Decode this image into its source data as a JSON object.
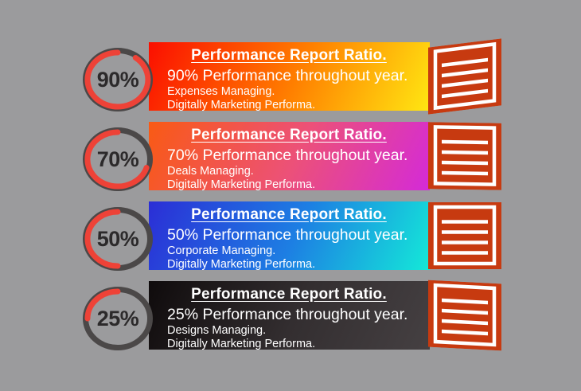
{
  "colors": {
    "bg": "#9b9b9d",
    "ring_gray": "#4b4848",
    "arc_red": "#ee4237",
    "icon_red": "#c73a10",
    "percent_text": "#2c2a2b",
    "banner_text": "#ffffff"
  },
  "rows": [
    {
      "percent": 90,
      "percent_label": "90%",
      "title": "Performance Report Ratio.",
      "subtitle": "90% Performance throughout year.",
      "detail1": "Expenses Managing.",
      "detail2": "Digitally Marketing Performa.",
      "gradient": [
        "#fb0f00",
        "#ff7e00",
        "#ffe712"
      ],
      "icon_tilt_deg": -7
    },
    {
      "percent": 70,
      "percent_label": "70%",
      "title": "Performance Report Ratio.",
      "subtitle": "70% Performance throughout year.",
      "detail1": "Deals Managing.",
      "detail2": "Digitally Marketing Performa.",
      "gradient": [
        "#f95a14",
        "#ec5178",
        "#d42ad8"
      ],
      "icon_tilt_deg": 1
    },
    {
      "percent": 50,
      "percent_label": "50%",
      "title": "Performance Report Ratio.",
      "subtitle": "50% Performance throughout year.",
      "detail1": "Corporate Managing.",
      "detail2": "Digitally Marketing Performa.",
      "gradient": [
        "#2b2ed6",
        "#1d7fe3",
        "#14e9d8"
      ],
      "icon_tilt_deg": 0
    },
    {
      "percent": 25,
      "percent_label": "25%",
      "title": "Performance Report Ratio.",
      "subtitle": "25% Performance throughout year.",
      "detail1": "Designs Managing.",
      "detail2": "Digitally Marketing Performa.",
      "gradient": [
        "#0f0b0c",
        "#332e30",
        "#454042"
      ],
      "icon_tilt_deg": 3
    }
  ]
}
